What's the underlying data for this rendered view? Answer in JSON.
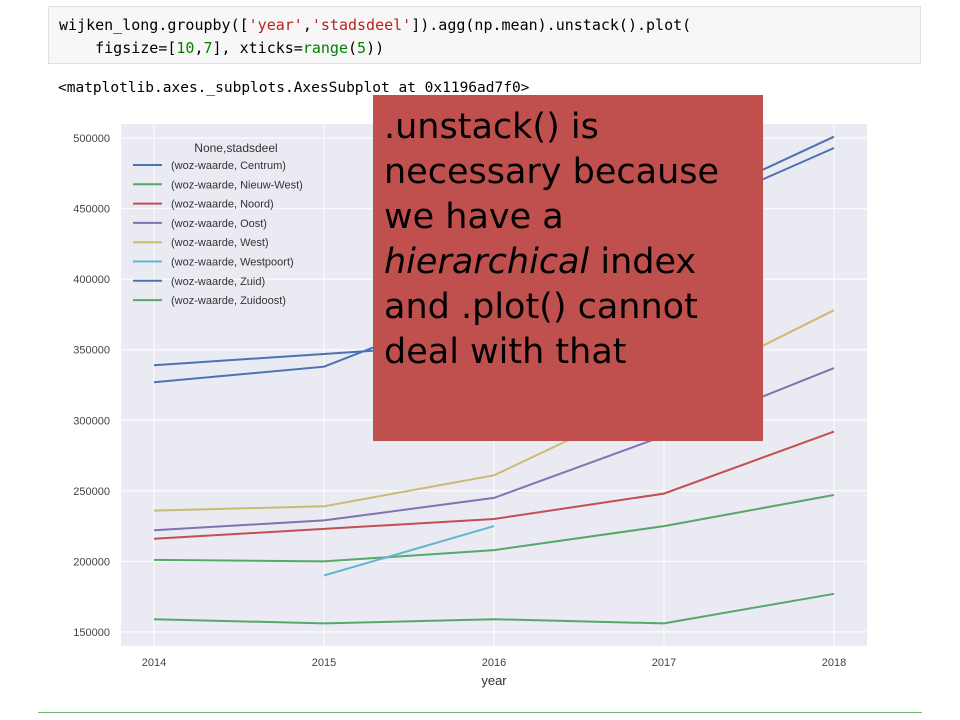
{
  "code": {
    "line1": {
      "p1": "wijken_long.groupby([",
      "s1": "'year'",
      "p2": ",",
      "s2": "'stadsdeel'",
      "p3": "]).agg(np.mean).unstack().plot("
    },
    "line2": {
      "p1": "    figsize=[",
      "n1": "10",
      "p2": ",",
      "n2": "7",
      "p3": "], xticks=",
      "f1": "range",
      "p4": "(",
      "n3": "5",
      "p5": "))"
    }
  },
  "output": "<matplotlib.axes._subplots.AxesSubplot at 0x1196ad7f0>",
  "callout": {
    "part1": ".unstack() is necessary because we have a ",
    "italic": "hierarchical",
    "part2": " index and .plot() cannot deal with that",
    "color": "#c0504d"
  },
  "chart_data": {
    "type": "line",
    "x": [
      2014,
      2015,
      2016,
      2017,
      2018
    ],
    "xlabel": "year",
    "ylabel": "",
    "ylim": [
      140000,
      510000
    ],
    "yticks": [
      150000,
      200000,
      250000,
      300000,
      350000,
      400000,
      450000,
      500000
    ],
    "ytick_labels": [
      "150000",
      "200000",
      "250000",
      "300000",
      "350000",
      "400000",
      "450000",
      "500000"
    ],
    "xtick_labels": [
      "2014",
      "2015",
      "2016",
      "2017",
      "2018"
    ],
    "grid": true,
    "background": "#eaeaf2",
    "legend": {
      "title": "None,stadsdeel",
      "placement": "top-left"
    },
    "series": [
      {
        "name": "(woz-waarde, Centrum)",
        "color": "#4c72b0",
        "values": [
          339000,
          347000,
          355000,
          440000,
          493000
        ]
      },
      {
        "name": "(woz-waarde, Nieuw-West)",
        "color": "#55a868",
        "values": [
          201000,
          200000,
          208000,
          225000,
          247000
        ]
      },
      {
        "name": "(woz-waarde, Noord)",
        "color": "#c44e52",
        "values": [
          216000,
          223000,
          230000,
          248000,
          292000
        ]
      },
      {
        "name": "(woz-waarde, Oost)",
        "color": "#8172b2",
        "values": [
          222000,
          229000,
          245000,
          289000,
          337000
        ]
      },
      {
        "name": "(woz-waarde, West)",
        "color": "#ccb974",
        "values": [
          236000,
          239000,
          261000,
          318000,
          378000
        ]
      },
      {
        "name": "(woz-waarde, Westpoort)",
        "color": "#64b5cd",
        "values": [
          null,
          190000,
          225000,
          null,
          null
        ]
      },
      {
        "name": "(woz-waarde, Zuid)",
        "color": "#4c72b0",
        "values": [
          327000,
          338000,
          385000,
          445000,
          501000
        ]
      },
      {
        "name": "(woz-waarde, Zuidoost)",
        "color": "#55a868",
        "values": [
          159000,
          156000,
          159000,
          156000,
          177000
        ]
      }
    ]
  }
}
